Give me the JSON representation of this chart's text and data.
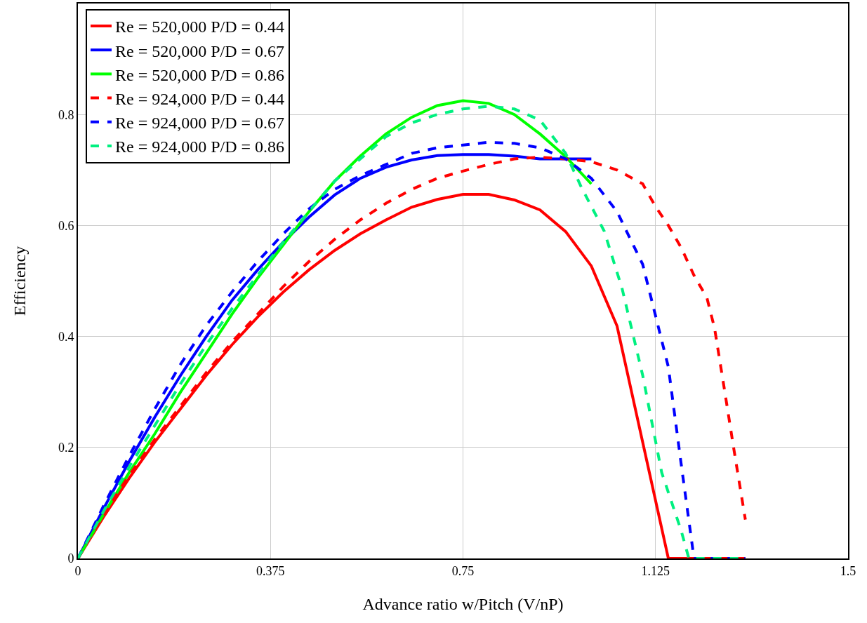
{
  "chart_data": {
    "type": "line",
    "xlabel": "Advance ratio w/Pitch (V/nP)",
    "ylabel": "Efficiency",
    "xlim": [
      0,
      1.5
    ],
    "xticks": [
      0,
      0.375,
      0.75,
      1.125,
      1.5
    ],
    "ylim": [
      0,
      1
    ],
    "yticks": [
      0,
      0.2,
      0.4,
      0.6,
      0.8
    ],
    "grid": true,
    "legend": "top left",
    "marker": "none",
    "series": [
      {
        "name": "Re = 520,000 P/D = 0.44",
        "color": "#ff0000",
        "line_style": "solid",
        "x": [
          0,
          0.05,
          0.1,
          0.15,
          0.2,
          0.25,
          0.3,
          0.35,
          0.4,
          0.45,
          0.5,
          0.55,
          0.6,
          0.65,
          0.7,
          0.75,
          0.8,
          0.85,
          0.9,
          0.95,
          1.0,
          1.05,
          1.15,
          1.3
        ],
        "values": [
          0,
          0.075,
          0.145,
          0.21,
          0.27,
          0.33,
          0.385,
          0.435,
          0.48,
          0.52,
          0.555,
          0.585,
          0.61,
          0.633,
          0.647,
          0.656,
          0.656,
          0.646,
          0.628,
          0.589,
          0.527,
          0.419,
          0,
          0
        ]
      },
      {
        "name": "Re = 520,000 P/D = 0.67",
        "color": "#0000ff",
        "line_style": "solid",
        "x": [
          0,
          0.05,
          0.1,
          0.15,
          0.2,
          0.25,
          0.3,
          0.35,
          0.4,
          0.45,
          0.5,
          0.55,
          0.6,
          0.65,
          0.7,
          0.75,
          0.8,
          0.85,
          0.9,
          0.95,
          1.0
        ],
        "values": [
          0,
          0.09,
          0.175,
          0.255,
          0.33,
          0.4,
          0.465,
          0.52,
          0.57,
          0.615,
          0.655,
          0.685,
          0.705,
          0.718,
          0.726,
          0.728,
          0.728,
          0.725,
          0.72,
          0.72,
          0.72
        ]
      },
      {
        "name": "Re = 520,000 P/D = 0.86",
        "color": "#00ff00",
        "line_style": "solid",
        "x": [
          0,
          0.05,
          0.1,
          0.15,
          0.2,
          0.25,
          0.3,
          0.35,
          0.4,
          0.45,
          0.5,
          0.55,
          0.6,
          0.65,
          0.7,
          0.75,
          0.8,
          0.85,
          0.9,
          0.95,
          1.0
        ],
        "values": [
          0,
          0.08,
          0.155,
          0.225,
          0.3,
          0.37,
          0.44,
          0.505,
          0.565,
          0.625,
          0.68,
          0.725,
          0.765,
          0.795,
          0.816,
          0.825,
          0.82,
          0.8,
          0.765,
          0.724,
          0.675
        ]
      },
      {
        "name": "Re = 924,000 P/D = 0.44",
        "color": "#ff0000",
        "line_style": "dashed",
        "x": [
          0,
          0.05,
          0.1,
          0.15,
          0.2,
          0.25,
          0.3,
          0.35,
          0.4,
          0.45,
          0.5,
          0.55,
          0.6,
          0.65,
          0.7,
          0.75,
          0.8,
          0.85,
          0.9,
          0.95,
          1.0,
          1.05,
          1.1,
          1.125,
          1.15,
          1.175,
          1.2,
          1.225,
          1.24,
          1.26,
          1.276,
          1.3
        ],
        "values": [
          0,
          0.08,
          0.15,
          0.215,
          0.275,
          0.335,
          0.39,
          0.44,
          0.49,
          0.535,
          0.575,
          0.61,
          0.64,
          0.665,
          0.685,
          0.698,
          0.71,
          0.72,
          0.723,
          0.72,
          0.715,
          0.7,
          0.675,
          0.634,
          0.6,
          0.56,
          0.51,
          0.47,
          0.415,
          0.3,
          0.206,
          0.07
        ]
      },
      {
        "name": "Re = 924,000 P/D = 0.67",
        "color": "#0000ff",
        "line_style": "dashed",
        "x": [
          0,
          0.05,
          0.1,
          0.15,
          0.2,
          0.25,
          0.3,
          0.35,
          0.4,
          0.45,
          0.5,
          0.55,
          0.6,
          0.65,
          0.7,
          0.75,
          0.8,
          0.85,
          0.9,
          0.95,
          1.0,
          1.05,
          1.1,
          1.15,
          1.175,
          1.2,
          1.3
        ],
        "values": [
          0,
          0.095,
          0.185,
          0.27,
          0.35,
          0.42,
          0.48,
          0.535,
          0.585,
          0.63,
          0.665,
          0.69,
          0.71,
          0.73,
          0.74,
          0.745,
          0.75,
          0.748,
          0.74,
          0.72,
          0.685,
          0.625,
          0.53,
          0.345,
          0.17,
          0,
          0
        ]
      },
      {
        "name": "Re = 924,000 P/D = 0.86",
        "color": "#00f080",
        "line_style": "dashed",
        "x": [
          0,
          0.05,
          0.1,
          0.15,
          0.2,
          0.25,
          0.3,
          0.35,
          0.4,
          0.45,
          0.5,
          0.55,
          0.6,
          0.65,
          0.7,
          0.75,
          0.8,
          0.85,
          0.9,
          0.95,
          0.98,
          1.025,
          1.06,
          1.1,
          1.137,
          1.175,
          1.19,
          1.3
        ],
        "values": [
          0,
          0.085,
          0.165,
          0.24,
          0.315,
          0.385,
          0.45,
          0.51,
          0.57,
          0.625,
          0.68,
          0.72,
          0.76,
          0.785,
          0.8,
          0.81,
          0.815,
          0.81,
          0.79,
          0.73,
          0.67,
          0.59,
          0.486,
          0.33,
          0.155,
          0.05,
          0,
          0
        ]
      }
    ]
  }
}
